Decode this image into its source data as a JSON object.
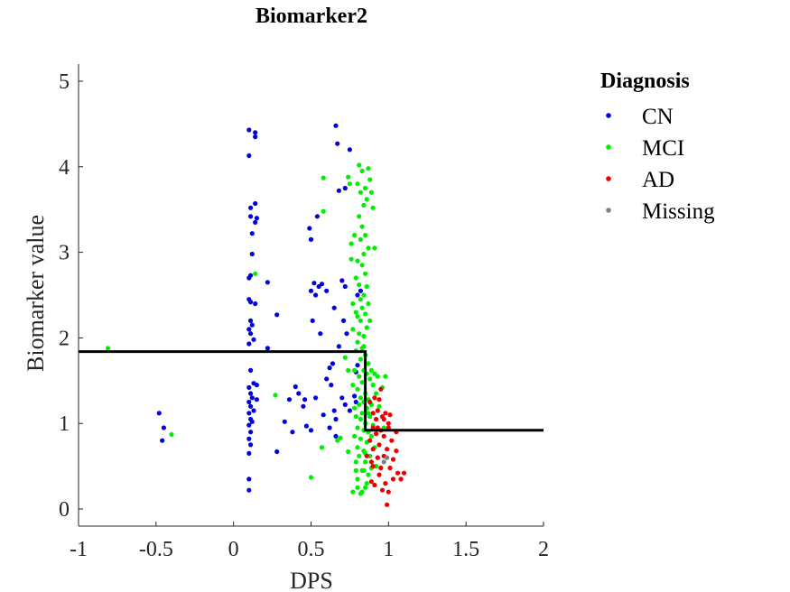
{
  "chart_data": {
    "type": "scatter",
    "title": "Biomarker2",
    "xlabel": "DPS",
    "ylabel": "Biomarker value",
    "xlim": [
      -1,
      2
    ],
    "ylim": [
      -0.2,
      5.2
    ],
    "xticks": [
      -1,
      -0.5,
      0,
      0.5,
      1,
      1.5,
      2
    ],
    "xtick_labels": [
      "-1",
      "-0.5",
      "0",
      "0.5",
      "1",
      "1.5",
      "2"
    ],
    "yticks": [
      0,
      1,
      2,
      3,
      4,
      5
    ],
    "ytick_labels": [
      "0",
      "1",
      "2",
      "3",
      "4",
      "5"
    ],
    "grid": false,
    "legend": {
      "title": "Diagnosis",
      "placement": "outside-right-top",
      "entries": [
        "CN",
        "MCI",
        "AD",
        "Missing"
      ]
    },
    "colors": {
      "CN": "#0000dd",
      "MCI": "#00ee00",
      "AD": "#ee0000",
      "Missing": "#808080",
      "threshold": "#000000"
    },
    "series": [
      {
        "name": "CN",
        "points": [
          [
            0.1,
            4.43
          ],
          [
            0.14,
            4.4
          ],
          [
            0.14,
            4.35
          ],
          [
            0.1,
            4.13
          ],
          [
            0.11,
            3.52
          ],
          [
            0.14,
            3.57
          ],
          [
            0.11,
            3.42
          ],
          [
            0.15,
            3.4
          ],
          [
            0.14,
            3.35
          ],
          [
            0.12,
            3.22
          ],
          [
            0.12,
            2.98
          ],
          [
            0.11,
            2.73
          ],
          [
            0.1,
            2.7
          ],
          [
            0.22,
            2.65
          ],
          [
            0.1,
            2.45
          ],
          [
            0.11,
            2.42
          ],
          [
            0.14,
            2.4
          ],
          [
            0.28,
            2.27
          ],
          [
            0.11,
            2.2
          ],
          [
            0.12,
            2.15
          ],
          [
            0.1,
            2.1
          ],
          [
            0.11,
            2.05
          ],
          [
            0.13,
            1.98
          ],
          [
            0.1,
            1.93
          ],
          [
            0.22,
            1.88
          ],
          [
            0.11,
            1.62
          ],
          [
            0.13,
            1.47
          ],
          [
            0.15,
            1.45
          ],
          [
            0.1,
            1.42
          ],
          [
            0.11,
            1.35
          ],
          [
            0.12,
            1.3
          ],
          [
            0.15,
            1.28
          ],
          [
            0.1,
            1.25
          ],
          [
            0.11,
            1.2
          ],
          [
            0.13,
            1.15
          ],
          [
            0.1,
            1.12
          ],
          [
            0.11,
            1.05
          ],
          [
            0.12,
            1.02
          ],
          [
            0.1,
            0.98
          ],
          [
            0.11,
            0.9
          ],
          [
            0.1,
            0.82
          ],
          [
            0.11,
            0.75
          ],
          [
            0.1,
            0.65
          ],
          [
            0.1,
            0.35
          ],
          [
            0.1,
            0.22
          ],
          [
            0.28,
            0.67
          ],
          [
            0.36,
            1.28
          ],
          [
            0.4,
            1.43
          ],
          [
            0.42,
            1.35
          ],
          [
            0.45,
            1.2
          ],
          [
            0.33,
            1.02
          ],
          [
            0.38,
            0.9
          ],
          [
            0.47,
            0.97
          ],
          [
            0.5,
            0.92
          ],
          [
            0.46,
            1.28
          ],
          [
            0.53,
            1.3
          ],
          [
            0.49,
            3.28
          ],
          [
            0.5,
            3.15
          ],
          [
            0.54,
            3.42
          ],
          [
            0.66,
            4.48
          ],
          [
            0.67,
            4.27
          ],
          [
            0.75,
            4.2
          ],
          [
            0.68,
            3.72
          ],
          [
            0.72,
            3.75
          ],
          [
            0.5,
            2.55
          ],
          [
            0.52,
            2.64
          ],
          [
            0.55,
            2.6
          ],
          [
            0.57,
            2.63
          ],
          [
            0.6,
            2.55
          ],
          [
            0.53,
            2.5
          ],
          [
            0.51,
            2.2
          ],
          [
            0.56,
            2.05
          ],
          [
            0.62,
            1.65
          ],
          [
            0.64,
            1.7
          ],
          [
            0.6,
            1.52
          ],
          [
            0.63,
            1.45
          ],
          [
            0.58,
            1.1
          ],
          [
            0.66,
            1.05
          ],
          [
            0.65,
            1.15
          ],
          [
            0.7,
            2.67
          ],
          [
            0.72,
            2.6
          ],
          [
            0.71,
            2.2
          ],
          [
            0.73,
            2.05
          ],
          [
            0.68,
            1.9
          ],
          [
            0.7,
            1.3
          ],
          [
            0.72,
            1.22
          ],
          [
            0.75,
            1.15
          ],
          [
            0.78,
            1.32
          ],
          [
            0.79,
            1.6
          ],
          [
            0.8,
            1.68
          ],
          [
            0.82,
            2.55
          ],
          [
            0.8,
            2.5
          ],
          [
            0.65,
            2.35
          ],
          [
            0.66,
            0.85
          ],
          [
            0.62,
            0.95
          ],
          [
            0.79,
            1.25
          ],
          [
            -0.48,
            1.12
          ],
          [
            -0.45,
            0.95
          ],
          [
            -0.46,
            0.8
          ]
        ]
      },
      {
        "name": "MCI",
        "points": [
          [
            -0.81,
            1.88
          ],
          [
            -0.4,
            0.87
          ],
          [
            0.27,
            1.33
          ],
          [
            0.14,
            2.75
          ],
          [
            0.5,
            0.37
          ],
          [
            0.57,
            0.72
          ],
          [
            0.58,
            3.48
          ],
          [
            0.58,
            3.87
          ],
          [
            0.67,
            0.8
          ],
          [
            0.69,
            0.83
          ],
          [
            0.72,
            1.77
          ],
          [
            0.74,
            1.62
          ],
          [
            0.74,
            0.67
          ],
          [
            0.74,
            3.88
          ],
          [
            0.75,
            3.8
          ],
          [
            0.76,
            2.92
          ],
          [
            0.76,
            3.1
          ],
          [
            0.77,
            2.4
          ],
          [
            0.77,
            2.1
          ],
          [
            0.77,
            1.45
          ],
          [
            0.77,
            0.2
          ],
          [
            0.78,
            3.2
          ],
          [
            0.78,
            1.18
          ],
          [
            0.78,
            0.85
          ],
          [
            0.79,
            2.7
          ],
          [
            0.79,
            2.3
          ],
          [
            0.79,
            1.85
          ],
          [
            0.79,
            1.08
          ],
          [
            0.79,
            0.55
          ],
          [
            0.8,
            3.8
          ],
          [
            0.8,
            2.9
          ],
          [
            0.8,
            1.95
          ],
          [
            0.8,
            1.4
          ],
          [
            0.8,
            0.95
          ],
          [
            0.8,
            0.72
          ],
          [
            0.8,
            0.35
          ],
          [
            0.81,
            4.02
          ],
          [
            0.81,
            3.42
          ],
          [
            0.81,
            2.62
          ],
          [
            0.81,
            2.05
          ],
          [
            0.81,
            1.55
          ],
          [
            0.81,
            1.22
          ],
          [
            0.81,
            0.62
          ],
          [
            0.82,
            3.7
          ],
          [
            0.82,
            3.15
          ],
          [
            0.82,
            2.45
          ],
          [
            0.82,
            2.2
          ],
          [
            0.82,
            1.75
          ],
          [
            0.82,
            1.3
          ],
          [
            0.82,
            1.05
          ],
          [
            0.82,
            0.82
          ],
          [
            0.82,
            0.18
          ],
          [
            0.83,
            3.95
          ],
          [
            0.83,
            3.3
          ],
          [
            0.83,
            2.85
          ],
          [
            0.83,
            2.35
          ],
          [
            0.83,
            1.88
          ],
          [
            0.83,
            1.48
          ],
          [
            0.83,
            1.12
          ],
          [
            0.83,
            0.45
          ],
          [
            0.84,
            3.55
          ],
          [
            0.84,
            2.98
          ],
          [
            0.84,
            2.5
          ],
          [
            0.84,
            2.02
          ],
          [
            0.84,
            1.62
          ],
          [
            0.84,
            1.25
          ],
          [
            0.84,
            0.92
          ],
          [
            0.84,
            0.68
          ],
          [
            0.85,
            3.75
          ],
          [
            0.85,
            3.2
          ],
          [
            0.85,
            2.75
          ],
          [
            0.85,
            2.28
          ],
          [
            0.85,
            1.8
          ],
          [
            0.85,
            1.35
          ],
          [
            0.85,
            1.0
          ],
          [
            0.85,
            0.55
          ],
          [
            0.85,
            0.25
          ],
          [
            0.86,
            3.62
          ],
          [
            0.86,
            2.6
          ],
          [
            0.86,
            2.12
          ],
          [
            0.86,
            1.58
          ],
          [
            0.86,
            1.18
          ],
          [
            0.86,
            0.78
          ],
          [
            0.87,
            3.98
          ],
          [
            0.87,
            3.05
          ],
          [
            0.87,
            2.4
          ],
          [
            0.87,
            1.7
          ],
          [
            0.87,
            1.28
          ],
          [
            0.87,
            0.9
          ],
          [
            0.87,
            0.4
          ],
          [
            0.88,
            3.85
          ],
          [
            0.88,
            2.2
          ],
          [
            0.88,
            1.52
          ],
          [
            0.88,
            1.08
          ],
          [
            0.88,
            0.62
          ],
          [
            0.89,
            3.7
          ],
          [
            0.89,
            1.62
          ],
          [
            0.89,
            1.22
          ],
          [
            0.89,
            0.85
          ],
          [
            0.89,
            0.48
          ],
          [
            0.9,
            3.52
          ],
          [
            0.9,
            1.45
          ],
          [
            0.9,
            0.98
          ],
          [
            0.91,
            3.05
          ],
          [
            0.91,
            1.58
          ],
          [
            0.91,
            0.72
          ],
          [
            0.92,
            1.35
          ],
          [
            0.92,
            0.5
          ],
          [
            0.93,
            1.55
          ],
          [
            0.93,
            0.6
          ],
          [
            0.94,
            1.2
          ],
          [
            0.96,
            1.42
          ],
          [
            0.97,
            0.95
          ],
          [
            0.98,
            1.55
          ],
          [
            0.78,
            1.62
          ],
          [
            0.79,
            0.45
          ],
          [
            0.8,
            0.25
          ],
          [
            0.8,
            2.25
          ],
          [
            0.83,
            0.2
          ],
          [
            0.86,
            0.3
          ],
          [
            0.85,
            0.65
          ],
          [
            0.84,
            1.9
          ],
          [
            0.84,
            0.45
          ],
          [
            0.87,
            1.12
          ]
        ]
      },
      {
        "name": "AD",
        "points": [
          [
            0.86,
            0.62
          ],
          [
            0.88,
            1.25
          ],
          [
            0.88,
            0.8
          ],
          [
            0.89,
            0.55
          ],
          [
            0.89,
            0.32
          ],
          [
            0.9,
            1.12
          ],
          [
            0.9,
            0.95
          ],
          [
            0.9,
            0.7
          ],
          [
            0.91,
            0.28
          ],
          [
            0.92,
            1.05
          ],
          [
            0.92,
            0.88
          ],
          [
            0.93,
            0.6
          ],
          [
            0.93,
            1.15
          ],
          [
            0.94,
            1.28
          ],
          [
            0.94,
            0.75
          ],
          [
            0.95,
            0.48
          ],
          [
            0.95,
            0.92
          ],
          [
            0.96,
            1.08
          ],
          [
            0.96,
            0.22
          ],
          [
            0.97,
            0.62
          ],
          [
            0.97,
            0.85
          ],
          [
            0.98,
            1.12
          ],
          [
            0.98,
            0.3
          ],
          [
            0.99,
            0.05
          ],
          [
            0.99,
            0.7
          ],
          [
            1.0,
            0.95
          ],
          [
            1.0,
            0.2
          ],
          [
            1.01,
            0.48
          ],
          [
            1.01,
            1.1
          ],
          [
            1.02,
            0.8
          ],
          [
            1.03,
            0.35
          ],
          [
            1.03,
            0.58
          ],
          [
            1.05,
            0.9
          ],
          [
            1.05,
            0.68
          ],
          [
            1.06,
            0.42
          ],
          [
            1.08,
            0.35
          ],
          [
            1.1,
            0.42
          ],
          [
            0.95,
            1.4
          ],
          [
            0.91,
            1.3
          ],
          [
            0.93,
            0.95
          ],
          [
            0.97,
            1.05
          ],
          [
            1.0,
            1.0
          ],
          [
            0.94,
            0.4
          ],
          [
            0.9,
            0.5
          ]
        ]
      },
      {
        "name": "Missing",
        "points": [
          [
            0.97,
            0.55
          ],
          [
            0.99,
            0.6
          ]
        ]
      }
    ],
    "threshold_line": {
      "type": "step",
      "points": [
        [
          -1,
          1.84
        ],
        [
          0.85,
          1.84
        ],
        [
          0.85,
          0.92
        ],
        [
          2,
          0.92
        ]
      ]
    }
  }
}
